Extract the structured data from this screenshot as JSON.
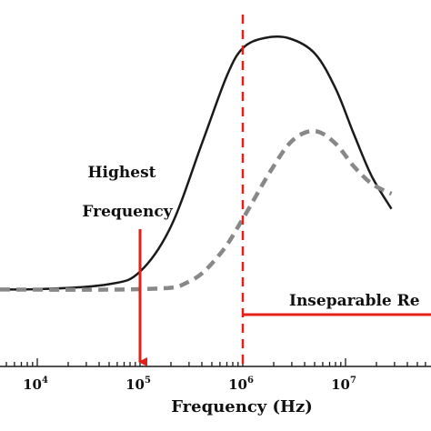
{
  "chart_data": {
    "type": "line",
    "xscale": "log",
    "xlim": [
      1000,
      100000000
    ],
    "xlabel": "Frequency (Hz)",
    "ylabel": "",
    "grid": false,
    "legend": "none",
    "x_ticks": [
      {
        "value": 10000,
        "base": "10",
        "exp": "4"
      },
      {
        "value": 100000,
        "base": "10",
        "exp": "5"
      },
      {
        "value": 1000000,
        "base": "10",
        "exp": "6"
      },
      {
        "value": 10000000,
        "base": "10",
        "exp": "7"
      }
    ],
    "series": [
      {
        "style": "solid",
        "color": "#1a1a1a",
        "points": [
          [
            1000,
            0.0
          ],
          [
            10000,
            0.0
          ],
          [
            50000,
            0.02
          ],
          [
            100000,
            0.07
          ],
          [
            200000,
            0.25
          ],
          [
            400000,
            0.58
          ],
          [
            700000,
            0.85
          ],
          [
            1000000,
            0.96
          ],
          [
            1600000,
            1.0
          ],
          [
            2800000,
            1.0
          ],
          [
            5000000,
            0.94
          ],
          [
            8000000,
            0.8
          ],
          [
            12000000,
            0.62
          ],
          [
            18000000,
            0.45
          ],
          [
            28000000,
            0.32
          ]
        ]
      },
      {
        "style": "dashed",
        "color": "#888888",
        "points": [
          [
            1000,
            0.0
          ],
          [
            100000,
            0.0
          ],
          [
            300000,
            0.03
          ],
          [
            600000,
            0.14
          ],
          [
            1000000,
            0.28
          ],
          [
            1800000,
            0.46
          ],
          [
            3000000,
            0.59
          ],
          [
            5000000,
            0.63
          ],
          [
            8000000,
            0.58
          ],
          [
            12000000,
            0.49
          ],
          [
            18000000,
            0.42
          ],
          [
            28000000,
            0.38
          ]
        ]
      }
    ],
    "annotations": {
      "highest_frequency": {
        "lines": [
          "Highest",
          "Frequency"
        ],
        "x": 100000,
        "color": "#e32119"
      },
      "boundary_x": 1000000,
      "boundary_color": "#e32119",
      "inseparable": {
        "text": "Inseparable Re",
        "x_start": 1000000,
        "color": "#e32119"
      }
    }
  }
}
